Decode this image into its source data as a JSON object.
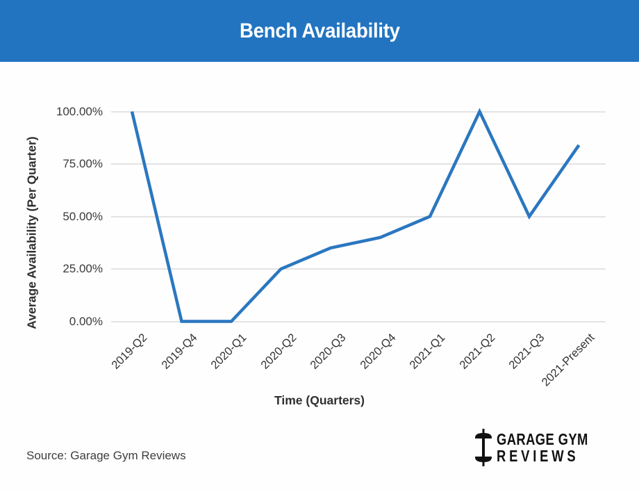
{
  "banner": {
    "title": "Bench Availability",
    "bg_color": "#2274c0",
    "text_color": "#ffffff"
  },
  "chart_data": {
    "type": "line",
    "title": "Bench Availability",
    "categories": [
      "2019-Q2",
      "2019-Q4",
      "2020-Q1",
      "2020-Q2",
      "2020-Q3",
      "2020-Q4",
      "2021-Q1",
      "2021-Q2",
      "2021-Q3",
      "2021-Present"
    ],
    "values": [
      100,
      0,
      0,
      25,
      35,
      40,
      50,
      100,
      50,
      84
    ],
    "xlabel": "Time (Quarters)",
    "ylabel": "Average Availability (Per Quarter)",
    "ylim": [
      0,
      100
    ],
    "yticks": [
      {
        "value": 100,
        "label": "100.00%"
      },
      {
        "value": 75,
        "label": "75.00%"
      },
      {
        "value": 50,
        "label": "50.00%"
      },
      {
        "value": 25,
        "label": "25.00%"
      },
      {
        "value": 0,
        "label": "0.00%"
      }
    ],
    "grid": true,
    "legend": "none",
    "line_color": "#2b77c0",
    "grid_color": "#e3e3e3"
  },
  "footer": {
    "source": "Source: Garage Gym Reviews",
    "logo": {
      "icon": "dumbbell-icon",
      "line1": "GARAGE GYM",
      "line2": "REVIEWS"
    }
  }
}
